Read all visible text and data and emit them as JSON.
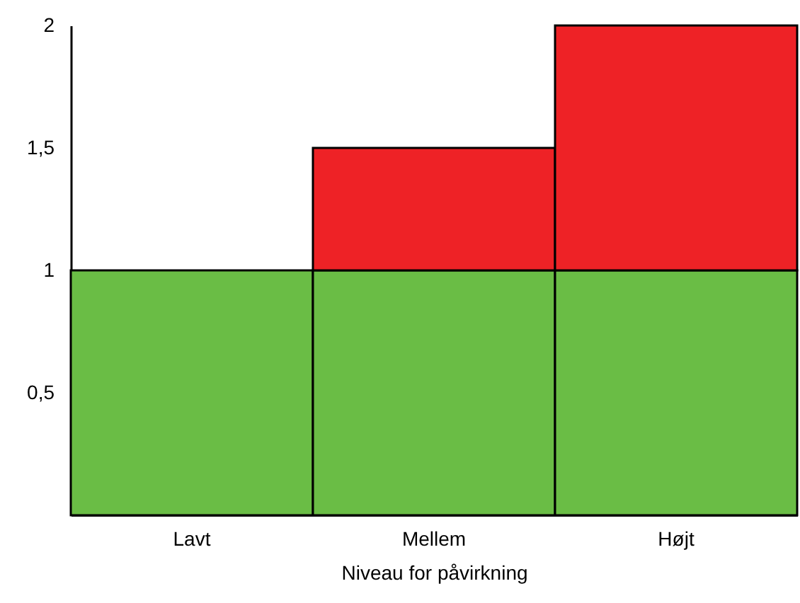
{
  "chart_data": {
    "type": "bar",
    "stacked": true,
    "xlabel": "Niveau for påvirkning",
    "categories": [
      "Lavt",
      "Mellem",
      "Højt"
    ],
    "series": [
      {
        "color": "#6abd45",
        "values": [
          1,
          1,
          1
        ]
      },
      {
        "color": "#ee2226",
        "values": [
          null,
          0.5,
          1
        ]
      }
    ],
    "ylim": [
      0,
      2
    ],
    "yticks": [
      {
        "value": 0.5,
        "label": "0,5"
      },
      1,
      {
        "value": 1.5,
        "label": "1,5"
      },
      2
    ]
  }
}
